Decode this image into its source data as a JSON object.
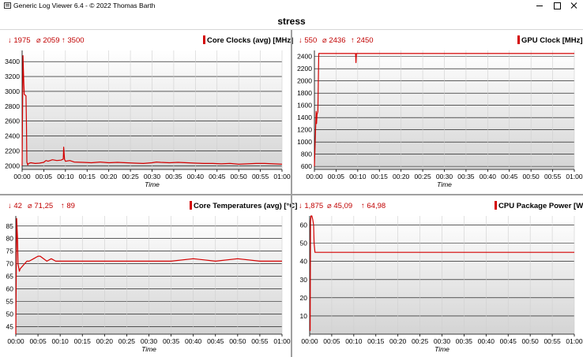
{
  "window": {
    "title": "Generic Log Viewer 6.4 - © 2022 Thomas Barth"
  },
  "page": {
    "title": "stress"
  },
  "colors": {
    "series": "#d40000",
    "stats": "#c00000",
    "plot_bg_top": "#ffffff",
    "plot_bg_bottom": "#d4d4d4"
  },
  "icons": {
    "app": "log-viewer-icon",
    "minimize": "minimize-icon",
    "maximize": "maximize-icon",
    "close": "close-icon"
  },
  "panels": [
    {
      "id": "core-clocks",
      "title": "Core Clocks (avg) [MHz]",
      "stats": {
        "min": "↓ 1975",
        "avg": "⌀ 2059",
        "max": "↑ 3500"
      }
    },
    {
      "id": "gpu-clock",
      "title": "GPU Clock [MHz]",
      "stats": {
        "min": "↓ 550",
        "avg": "⌀ 2436",
        "max": "↑ 2450"
      }
    },
    {
      "id": "core-temps",
      "title": "Core Temperatures (avg) [°C]",
      "stats": {
        "min": "↓ 42",
        "avg": "⌀ 71,25",
        "max": "↑ 89"
      }
    },
    {
      "id": "cpu-power",
      "title": "CPU Package Power [W]",
      "stats": {
        "min": "↓ 1,875",
        "avg": "⌀ 45,09",
        "max": "↑ 64,98"
      }
    }
  ],
  "chart_data": [
    {
      "type": "line",
      "title": "Core Clocks (avg) [MHz]",
      "xlabel": "Time",
      "ylabel": "",
      "x_unit": "minutes",
      "xlim": [
        0,
        60
      ],
      "ylim": [
        1950,
        3550
      ],
      "x_ticks": [
        0,
        5,
        10,
        15,
        20,
        25,
        30,
        35,
        40,
        45,
        50,
        55,
        60
      ],
      "x_tick_labels": [
        "00:00",
        "00:05",
        "00:10",
        "00:15",
        "00:20",
        "00:25",
        "00:30",
        "00:35",
        "00:40",
        "00:45",
        "00:50",
        "00:55",
        "01:00"
      ],
      "y_ticks": [
        2000,
        2200,
        2400,
        2600,
        2800,
        3000,
        3200,
        3400
      ],
      "y_tick_labels": [
        "2000",
        "2200",
        "2400",
        "2600",
        "2800",
        "3000",
        "3200",
        "3400"
      ],
      "grid": true,
      "series": [
        {
          "x": [
            0,
            0.2,
            0.3,
            0.4,
            0.5,
            0.7,
            0.9,
            1.0,
            1.1,
            1.3,
            1.5,
            2,
            3,
            4,
            5,
            5.5,
            6,
            7,
            8,
            9,
            9.5,
            9.6,
            9.8,
            10,
            11,
            12,
            14,
            16,
            18,
            20,
            22,
            24,
            26,
            28,
            30,
            31,
            32,
            34,
            36,
            38,
            40,
            42,
            44,
            46,
            48,
            50,
            52,
            54,
            56,
            58,
            60
          ],
          "y": [
            2000,
            3480,
            3300,
            3100,
            2960,
            2950,
            2940,
            2560,
            2050,
            2010,
            2030,
            2040,
            2030,
            2035,
            2045,
            2070,
            2060,
            2080,
            2070,
            2075,
            2090,
            2250,
            2085,
            2060,
            2070,
            2050,
            2045,
            2040,
            2050,
            2040,
            2045,
            2040,
            2035,
            2030,
            2040,
            2050,
            2045,
            2040,
            2045,
            2040,
            2035,
            2030,
            2030,
            2025,
            2030,
            2020,
            2025,
            2030,
            2030,
            2025,
            2020
          ]
        }
      ]
    },
    {
      "type": "line",
      "title": "GPU Clock [MHz]",
      "xlabel": "Time",
      "ylabel": "",
      "x_unit": "minutes",
      "xlim": [
        0,
        60
      ],
      "ylim": [
        550,
        2500
      ],
      "x_ticks": [
        0,
        5,
        10,
        15,
        20,
        25,
        30,
        35,
        40,
        45,
        50,
        55,
        60
      ],
      "x_tick_labels": [
        "00:00",
        "00:05",
        "00:10",
        "00:15",
        "00:20",
        "00:25",
        "00:30",
        "00:35",
        "00:40",
        "00:45",
        "00:50",
        "00:55",
        "01:00"
      ],
      "y_ticks": [
        600,
        800,
        1000,
        1200,
        1400,
        1600,
        1800,
        2000,
        2200,
        2400
      ],
      "y_tick_labels": [
        "600",
        "800",
        "1000",
        "1200",
        "1400",
        "1600",
        "1800",
        "2000",
        "2200",
        "2400"
      ],
      "grid": true,
      "series": [
        {
          "x": [
            0,
            0.4,
            0.5,
            0.6,
            0.8,
            1.0,
            1.3,
            1.5,
            2.5,
            9.5,
            9.6,
            9.7,
            10,
            20,
            30,
            40,
            50,
            60
          ],
          "y": [
            600,
            1500,
            1300,
            1450,
            1500,
            2450,
            2450,
            2450,
            2450,
            2450,
            2300,
            2450,
            2450,
            2450,
            2450,
            2450,
            2450,
            2450
          ]
        }
      ]
    },
    {
      "type": "line",
      "title": "Core Temperatures (avg) [°C]",
      "xlabel": "Time",
      "ylabel": "",
      "x_unit": "minutes",
      "xlim": [
        0,
        60
      ],
      "ylim": [
        42,
        89
      ],
      "x_ticks": [
        0,
        5,
        10,
        15,
        20,
        25,
        30,
        35,
        40,
        45,
        50,
        55,
        60
      ],
      "x_tick_labels": [
        "00:00",
        "00:05",
        "00:10",
        "00:15",
        "00:20",
        "00:25",
        "00:30",
        "00:35",
        "00:40",
        "00:45",
        "00:50",
        "00:55",
        "01:00"
      ],
      "y_ticks": [
        45,
        50,
        55,
        60,
        65,
        70,
        75,
        80,
        85
      ],
      "y_tick_labels": [
        "45",
        "50",
        "55",
        "60",
        "65",
        "70",
        "75",
        "80",
        "85"
      ],
      "grid": true,
      "series": [
        {
          "x": [
            0,
            0.2,
            0.4,
            0.5,
            0.8,
            1.0,
            1.5,
            2,
            2.5,
            3,
            4,
            5,
            5.5,
            7,
            8,
            9,
            10,
            12,
            15,
            20,
            25,
            30,
            35,
            40,
            45,
            50,
            55,
            60
          ],
          "y": [
            42,
            88,
            80,
            70,
            67,
            68,
            69,
            70,
            71,
            71,
            72,
            73,
            73,
            71,
            72,
            71,
            71,
            71,
            71,
            71,
            71,
            71,
            71,
            72,
            71,
            72,
            71,
            71
          ]
        }
      ]
    },
    {
      "type": "line",
      "title": "CPU Package Power [W]",
      "xlabel": "Time",
      "ylabel": "",
      "x_unit": "minutes",
      "xlim": [
        0,
        60
      ],
      "ylim": [
        0,
        65
      ],
      "x_ticks": [
        0,
        5,
        10,
        15,
        20,
        25,
        30,
        35,
        40,
        45,
        50,
        55,
        60
      ],
      "x_tick_labels": [
        "00:00",
        "00:05",
        "00:10",
        "00:15",
        "00:20",
        "00:25",
        "00:30",
        "00:35",
        "00:40",
        "00:45",
        "00:50",
        "00:55",
        "01:00"
      ],
      "y_ticks": [
        10,
        20,
        30,
        40,
        50,
        60
      ],
      "y_tick_labels": [
        "10",
        "20",
        "30",
        "40",
        "50",
        "60"
      ],
      "grid": true,
      "series": [
        {
          "x": [
            0,
            0.1,
            0.2,
            0.3,
            0.5,
            0.7,
            0.9,
            1.0,
            1.2,
            2,
            5,
            10,
            20,
            30,
            40,
            50,
            60
          ],
          "y": [
            2,
            2,
            62,
            65,
            65,
            63,
            60,
            50,
            45,
            45,
            45,
            45,
            45,
            45,
            45,
            45,
            45
          ]
        }
      ]
    }
  ]
}
